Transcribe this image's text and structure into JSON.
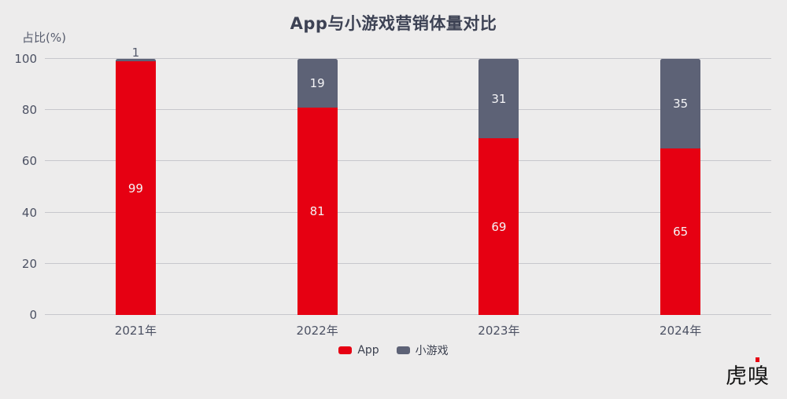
{
  "chart_data": {
    "type": "bar",
    "stacked": true,
    "title": "App与小游戏营销体量对比",
    "ylabel": "占比(%)",
    "xlabel": "",
    "categories": [
      "2021年",
      "2022年",
      "2023年",
      "2024年"
    ],
    "series": [
      {
        "name": "App",
        "color": "#e60012",
        "values": [
          99,
          81,
          69,
          65
        ]
      },
      {
        "name": "小游戏",
        "color": "#5d6276",
        "values": [
          1,
          19,
          31,
          35
        ]
      }
    ],
    "ylim": [
      0,
      100
    ],
    "yticks": [
      0,
      20,
      40,
      60,
      80,
      100
    ],
    "grid": true,
    "legend_position": "bottom",
    "value_labels": "inside"
  },
  "colors": {
    "background": "#edecec",
    "gridline": "#c7c7cc",
    "title_text": "#3d4254",
    "axis_text": "#4c5163",
    "value_label_inside": "#f4f4f6",
    "value_label_outside": "#565b6d",
    "app_red": "#e60012",
    "minigame_slate": "#5d6276"
  },
  "logo": {
    "text": "虎嗅"
  }
}
